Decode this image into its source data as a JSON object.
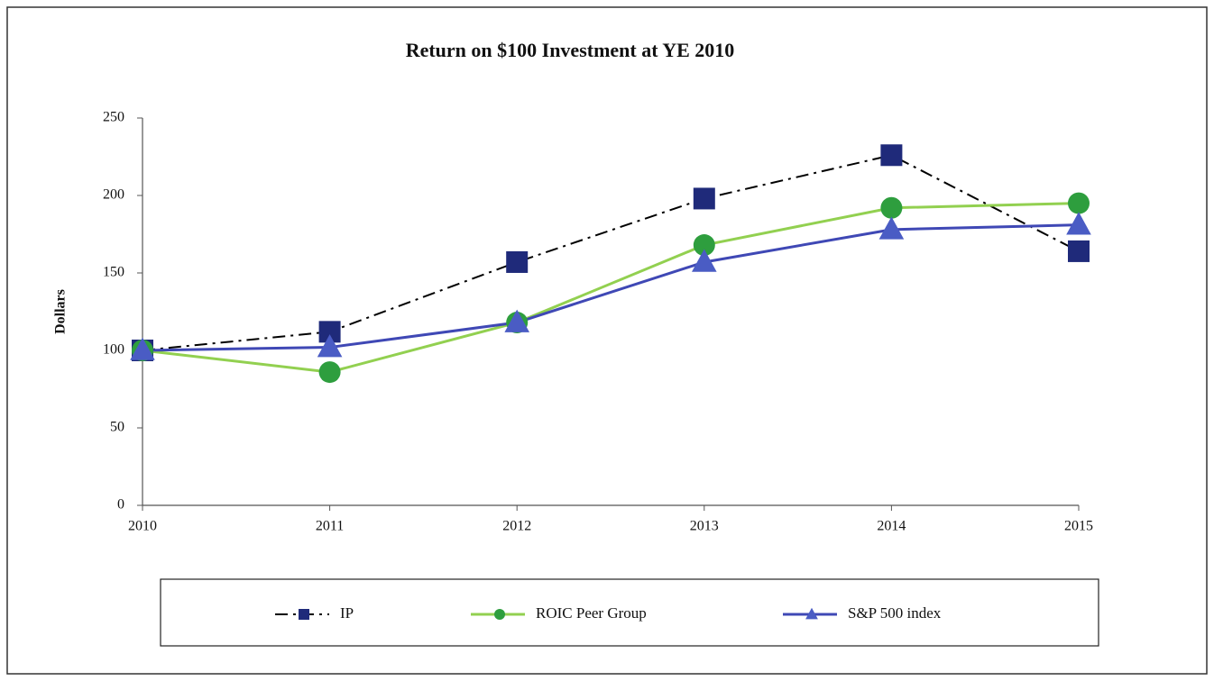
{
  "chart_data": {
    "type": "line",
    "title": "Return on $100 Investment at YE 2010",
    "y_label": "Dollars",
    "categories": [
      "2010",
      "2011",
      "2012",
      "2013",
      "2014",
      "2015"
    ],
    "series": [
      {
        "name": "IP",
        "color": "#000000",
        "marker_color": "#1f2a7a",
        "marker": "square",
        "dash": "dashdot",
        "values": [
          100,
          112,
          157,
          198,
          226,
          164
        ]
      },
      {
        "name": "ROIC Peer Group",
        "color": "#92d050",
        "marker_color": "#2e9e3e",
        "marker": "circle",
        "dash": "solid",
        "values": [
          100,
          86,
          118,
          168,
          192,
          195
        ]
      },
      {
        "name": "S&P 500 index",
        "color": "#3f48b5",
        "marker_color": "#4a5cc4",
        "marker": "triangle",
        "dash": "solid",
        "values": [
          100,
          102,
          118,
          157,
          178,
          181
        ]
      }
    ],
    "ylim": [
      0,
      250
    ],
    "yticks": [
      0,
      50,
      100,
      150,
      200,
      250
    ],
    "grid": false,
    "legend": "bottom"
  }
}
